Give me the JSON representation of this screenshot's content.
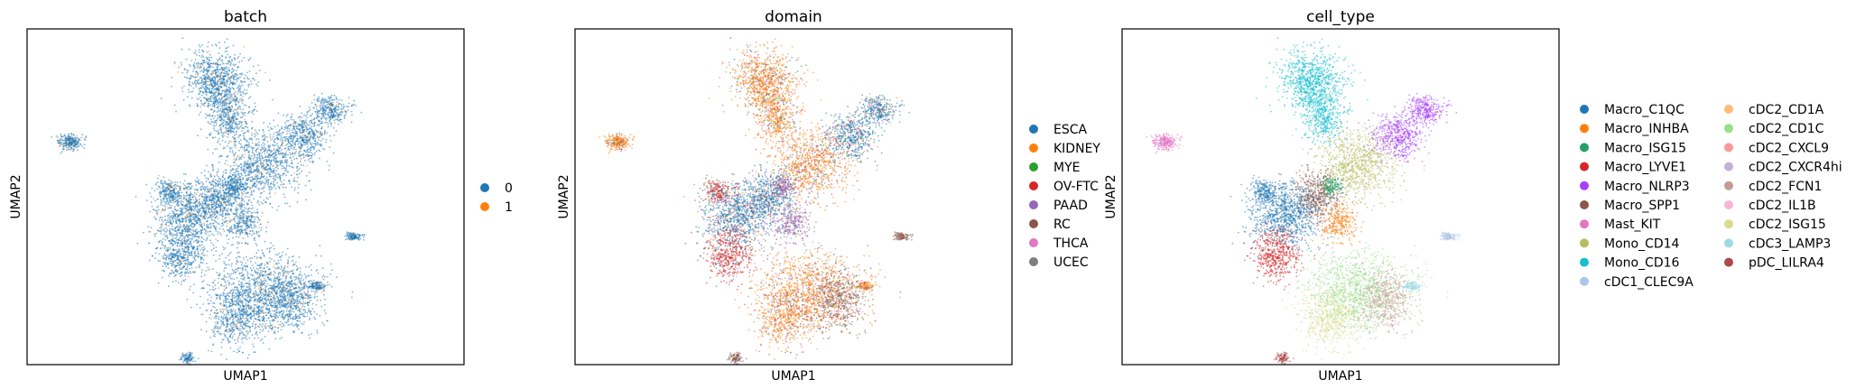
{
  "chart_data": [
    {
      "type": "scatter",
      "title": "batch",
      "xlabel": "UMAP1",
      "ylabel": "UMAP2",
      "grid": false,
      "legend_placement": "right",
      "legend": [
        {
          "label": "0",
          "color": "#1f77b4"
        },
        {
          "label": "1",
          "color": "#ff7f0e"
        }
      ]
    },
    {
      "type": "scatter",
      "title": "domain",
      "xlabel": "UMAP1",
      "ylabel": "UMAP2",
      "grid": false,
      "legend_placement": "right",
      "legend": [
        {
          "label": "ESCA",
          "color": "#1f77b4"
        },
        {
          "label": "KIDNEY",
          "color": "#ff7f0e"
        },
        {
          "label": "MYE",
          "color": "#2ca02c"
        },
        {
          "label": "OV-FTC",
          "color": "#d62728"
        },
        {
          "label": "PAAD",
          "color": "#9467bd"
        },
        {
          "label": "RC",
          "color": "#8c564b"
        },
        {
          "label": "THCA",
          "color": "#e377c2"
        },
        {
          "label": "UCEC",
          "color": "#7f7f7f"
        }
      ]
    },
    {
      "type": "scatter",
      "title": "cell_type",
      "xlabel": "UMAP1",
      "ylabel": "UMAP2",
      "grid": false,
      "legend_placement": "right",
      "legend": [
        {
          "label": "Macro_C1QC",
          "color": "#1f77b4"
        },
        {
          "label": "Macro_INHBA",
          "color": "#ff7f0e"
        },
        {
          "label": "Macro_ISG15",
          "color": "#279e68"
        },
        {
          "label": "Macro_LYVE1",
          "color": "#d62728"
        },
        {
          "label": "Macro_NLRP3",
          "color": "#aa40fc"
        },
        {
          "label": "Macro_SPP1",
          "color": "#8c564b"
        },
        {
          "label": "Mast_KIT",
          "color": "#e377c2"
        },
        {
          "label": "Mono_CD14",
          "color": "#b5bd61"
        },
        {
          "label": "Mono_CD16",
          "color": "#17becf"
        },
        {
          "label": "cDC1_CLEC9A",
          "color": "#aec7e8"
        },
        {
          "label": "cDC2_CD1A",
          "color": "#ffbb78"
        },
        {
          "label": "cDC2_CD1C",
          "color": "#98df8a"
        },
        {
          "label": "cDC2_CXCL9",
          "color": "#ff9896"
        },
        {
          "label": "cDC2_CXCR4hi",
          "color": "#c5b0d5"
        },
        {
          "label": "cDC2_FCN1",
          "color": "#c49c94"
        },
        {
          "label": "cDC2_IL1B",
          "color": "#f7b6d2"
        },
        {
          "label": "cDC2_ISG15",
          "color": "#dbdb8d"
        },
        {
          "label": "cDC3_LAMP3",
          "color": "#9edae5"
        },
        {
          "label": "pDC_LILRA4",
          "color": "#ad494a"
        }
      ]
    }
  ]
}
